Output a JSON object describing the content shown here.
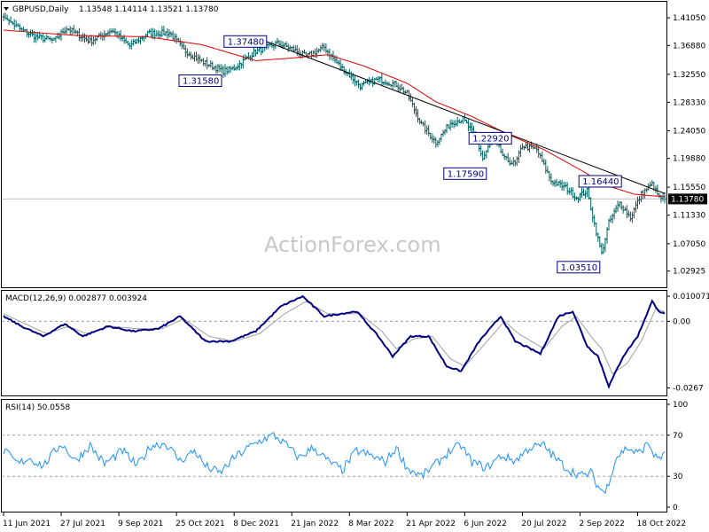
{
  "header": {
    "symbol_label": "GBPUSD,Daily",
    "ohlc": "1.13548 1.14114 1.13521 1.13780"
  },
  "watermark": "ActionForex.com",
  "chart_data": [
    {
      "type": "line",
      "panel": "price",
      "title": "GBPUSD,Daily",
      "ylim": [
        1.0075,
        1.432
      ],
      "y_ticks": [
        "1.41050",
        "1.36880",
        "1.32550",
        "1.28330",
        "1.24050",
        "1.19880",
        "1.15550",
        "1.11330",
        "1.07050",
        "1.02925"
      ],
      "y_tick_values": [
        1.4105,
        1.3688,
        1.3255,
        1.2833,
        1.2405,
        1.1988,
        1.1555,
        1.1133,
        1.0705,
        1.02925
      ],
      "current_price": 1.1378,
      "current_price_label": "1.13780",
      "x_ticks": [
        "11 Jun 2021",
        "27 Jul 2021",
        "9 Sep 2021",
        "25 Oct 2021",
        "8 Dec 2021",
        "21 Jan 2022",
        "8 Mar 2022",
        "21 Apr 2022",
        "6 Jun 2022",
        "20 Jul 2022",
        "2 Sep 2022",
        "18 Oct 2022"
      ],
      "x_tick_index": [
        0,
        32,
        64,
        96,
        128,
        160,
        192,
        224,
        256,
        288,
        320,
        352
      ],
      "bar_count": 368,
      "price_anchors": [
        [
          0,
          1.412
        ],
        [
          10,
          1.392
        ],
        [
          18,
          1.382
        ],
        [
          28,
          1.376
        ],
        [
          35,
          1.395
        ],
        [
          48,
          1.375
        ],
        [
          60,
          1.392
        ],
        [
          70,
          1.368
        ],
        [
          80,
          1.387
        ],
        [
          92,
          1.388
        ],
        [
          100,
          1.362
        ],
        [
          110,
          1.345
        ],
        [
          122,
          1.33
        ],
        [
          128,
          1.335
        ],
        [
          140,
          1.36
        ],
        [
          152,
          1.372
        ],
        [
          160,
          1.364
        ],
        [
          168,
          1.352
        ],
        [
          178,
          1.366
        ],
        [
          186,
          1.34
        ],
        [
          198,
          1.308
        ],
        [
          208,
          1.318
        ],
        [
          218,
          1.31
        ],
        [
          224,
          1.296
        ],
        [
          232,
          1.25
        ],
        [
          240,
          1.223
        ],
        [
          248,
          1.252
        ],
        [
          255,
          1.258
        ],
        [
          262,
          1.232
        ],
        [
          266,
          1.198
        ],
        [
          272,
          1.232
        ],
        [
          278,
          1.198
        ],
        [
          284,
          1.19
        ],
        [
          288,
          1.218
        ],
        [
          296,
          1.212
        ],
        [
          304,
          1.165
        ],
        [
          312,
          1.155
        ],
        [
          318,
          1.14
        ],
        [
          324,
          1.15
        ],
        [
          328,
          1.1
        ],
        [
          332,
          1.055
        ],
        [
          336,
          1.102
        ],
        [
          342,
          1.132
        ],
        [
          348,
          1.11
        ],
        [
          354,
          1.145
        ],
        [
          360,
          1.16
        ],
        [
          364,
          1.14
        ],
        [
          367,
          1.1378
        ]
      ],
      "sma_anchors": [
        [
          0,
          1.392
        ],
        [
          40,
          1.384
        ],
        [
          80,
          1.382
        ],
        [
          110,
          1.37
        ],
        [
          140,
          1.346
        ],
        [
          160,
          1.35
        ],
        [
          180,
          1.355
        ],
        [
          200,
          1.338
        ],
        [
          224,
          1.312
        ],
        [
          240,
          1.284
        ],
        [
          260,
          1.262
        ],
        [
          280,
          1.235
        ],
        [
          300,
          1.212
        ],
        [
          320,
          1.182
        ],
        [
          335,
          1.158
        ],
        [
          350,
          1.145
        ],
        [
          367,
          1.141
        ]
      ],
      "trendline": {
        "from": [
          146,
          1.3748
        ],
        "to": [
          367,
          1.146
        ]
      },
      "annotations": [
        {
          "label": "1.37480",
          "index": 146,
          "value": 1.3748,
          "side": "left"
        },
        {
          "label": "1.31580",
          "index": 121,
          "value": 1.3158,
          "side": "left"
        },
        {
          "label": "1.22920",
          "index": 282,
          "value": 1.2292,
          "side": "left"
        },
        {
          "label": "1.17590",
          "index": 268,
          "value": 1.1759,
          "side": "left"
        },
        {
          "label": "1.16440",
          "index": 343,
          "value": 1.1644,
          "side": "left"
        },
        {
          "label": "1.03510",
          "index": 331,
          "value": 1.0351,
          "side": "left"
        }
      ],
      "colors": {
        "bars": "#006060",
        "sma": "#e00000",
        "trend": "#000000",
        "annotation": "#000080"
      }
    },
    {
      "type": "line",
      "panel": "macd",
      "title": "MACD(12,26,9) 0.002877 0.003924",
      "ylim": [
        -0.029,
        0.0115
      ],
      "y_ticks": [
        "0.010071",
        "0.00",
        "-0.0267"
      ],
      "y_tick_values": [
        0.010071,
        0.0,
        -0.0267
      ],
      "macd_anchors": [
        [
          0,
          0.002
        ],
        [
          10,
          -0.002
        ],
        [
          22,
          -0.006
        ],
        [
          34,
          -0.001
        ],
        [
          44,
          -0.006
        ],
        [
          58,
          -0.002
        ],
        [
          72,
          -0.004
        ],
        [
          86,
          -0.003
        ],
        [
          98,
          0.002
        ],
        [
          112,
          -0.008
        ],
        [
          126,
          -0.008
        ],
        [
          140,
          -0.004
        ],
        [
          154,
          0.006
        ],
        [
          166,
          0.01
        ],
        [
          178,
          0.002
        ],
        [
          196,
          0.004
        ],
        [
          208,
          -0.006
        ],
        [
          216,
          -0.014
        ],
        [
          226,
          -0.006
        ],
        [
          236,
          -0.006
        ],
        [
          246,
          -0.018
        ],
        [
          254,
          -0.02
        ],
        [
          264,
          -0.008
        ],
        [
          276,
          0.002
        ],
        [
          284,
          -0.008
        ],
        [
          298,
          -0.013
        ],
        [
          308,
          0.002
        ],
        [
          316,
          0.004
        ],
        [
          324,
          -0.01
        ],
        [
          330,
          -0.014
        ],
        [
          336,
          -0.026
        ],
        [
          344,
          -0.014
        ],
        [
          352,
          -0.006
        ],
        [
          360,
          0.008
        ],
        [
          364,
          0.004
        ],
        [
          367,
          0.0029
        ]
      ],
      "signal_anchors": [
        [
          0,
          0.003
        ],
        [
          12,
          -0.001
        ],
        [
          24,
          -0.005
        ],
        [
          36,
          -0.002
        ],
        [
          46,
          -0.005
        ],
        [
          60,
          -0.002
        ],
        [
          74,
          -0.003
        ],
        [
          88,
          -0.003
        ],
        [
          100,
          0.001
        ],
        [
          114,
          -0.006
        ],
        [
          128,
          -0.008
        ],
        [
          142,
          -0.005
        ],
        [
          156,
          0.003
        ],
        [
          168,
          0.008
        ],
        [
          180,
          0.003
        ],
        [
          198,
          0.003
        ],
        [
          210,
          -0.004
        ],
        [
          218,
          -0.011
        ],
        [
          228,
          -0.007
        ],
        [
          238,
          -0.006
        ],
        [
          248,
          -0.015
        ],
        [
          256,
          -0.018
        ],
        [
          266,
          -0.01
        ],
        [
          278,
          0.0
        ],
        [
          286,
          -0.005
        ],
        [
          300,
          -0.011
        ],
        [
          310,
          -0.002
        ],
        [
          318,
          0.002
        ],
        [
          326,
          -0.006
        ],
        [
          332,
          -0.011
        ],
        [
          338,
          -0.021
        ],
        [
          346,
          -0.017
        ],
        [
          354,
          -0.008
        ],
        [
          362,
          0.005
        ],
        [
          367,
          0.0039
        ]
      ],
      "colors": {
        "macd": "#000080",
        "signal": "#a0a0a0",
        "zero": "#a0a0a0"
      }
    },
    {
      "type": "line",
      "panel": "rsi",
      "title": "RSI(14) 50.0558",
      "ylim": [
        0,
        100
      ],
      "y_ticks": [
        "100",
        "70",
        "30",
        "0"
      ],
      "y_tick_values": [
        100,
        70,
        30,
        0
      ],
      "levels": [
        70,
        30
      ],
      "rsi_anchors": [
        [
          0,
          55
        ],
        [
          8,
          42
        ],
        [
          14,
          48
        ],
        [
          22,
          40
        ],
        [
          32,
          62
        ],
        [
          40,
          45
        ],
        [
          48,
          60
        ],
        [
          56,
          42
        ],
        [
          66,
          55
        ],
        [
          74,
          40
        ],
        [
          82,
          60
        ],
        [
          90,
          62
        ],
        [
          98,
          45
        ],
        [
          106,
          55
        ],
        [
          112,
          40
        ],
        [
          120,
          33
        ],
        [
          128,
          48
        ],
        [
          136,
          58
        ],
        [
          144,
          66
        ],
        [
          150,
          70
        ],
        [
          156,
          62
        ],
        [
          164,
          48
        ],
        [
          172,
          58
        ],
        [
          180,
          45
        ],
        [
          188,
          36
        ],
        [
          196,
          55
        ],
        [
          204,
          50
        ],
        [
          212,
          44
        ],
        [
          218,
          58
        ],
        [
          224,
          38
        ],
        [
          232,
          30
        ],
        [
          240,
          42
        ],
        [
          248,
          55
        ],
        [
          254,
          60
        ],
        [
          260,
          44
        ],
        [
          268,
          38
        ],
        [
          276,
          50
        ],
        [
          284,
          45
        ],
        [
          292,
          58
        ],
        [
          300,
          60
        ],
        [
          306,
          48
        ],
        [
          314,
          36
        ],
        [
          322,
          30
        ],
        [
          326,
          34
        ],
        [
          330,
          20
        ],
        [
          334,
          14
        ],
        [
          340,
          48
        ],
        [
          346,
          58
        ],
        [
          352,
          52
        ],
        [
          358,
          62
        ],
        [
          362,
          48
        ],
        [
          367,
          50.06
        ]
      ],
      "colors": {
        "rsi": "#1e90ff",
        "levels": "#a0a0a0"
      }
    }
  ]
}
